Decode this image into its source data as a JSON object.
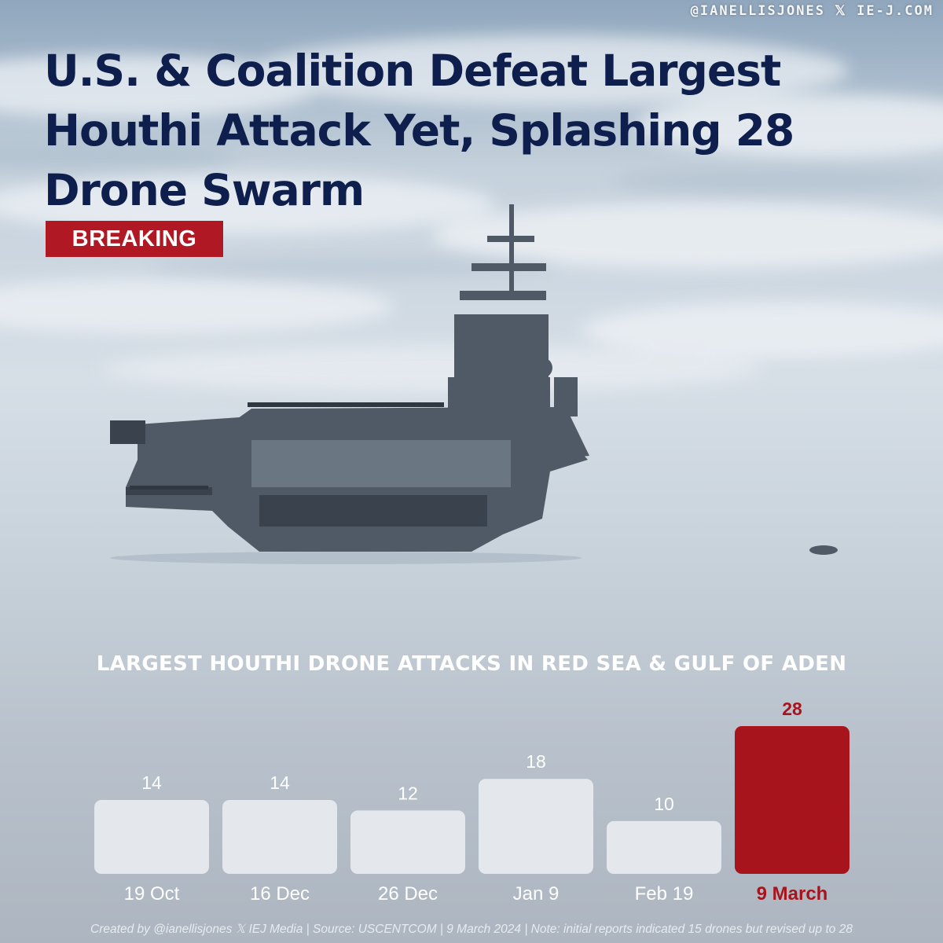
{
  "header": {
    "handle": "@IANELLISJONES 𝕏 IE-J.COM",
    "headline": "U.S. & Coalition Defeat Largest Houthi Attack Yet, Splashing 28 Drone Swarm",
    "badge": "BREAKING"
  },
  "colors": {
    "navy": "#0e1f4d",
    "accent_red": "#a8141c",
    "bar_default": "#e4e7ec",
    "label_default": "#ffffff"
  },
  "chart_data": {
    "type": "bar",
    "title": "LARGEST HOUTHI DRONE ATTACKS IN RED SEA & GULF OF ADEN",
    "categories": [
      "19 Oct",
      "16 Dec",
      "26 Dec",
      "Jan 9",
      "Feb 19",
      "9 March"
    ],
    "values": [
      14,
      14,
      12,
      18,
      10,
      28
    ],
    "highlight_index": 5,
    "ylim": [
      0,
      28
    ],
    "grid": false,
    "xlabel": "",
    "ylabel": ""
  },
  "footer": {
    "text": "Created by @ianellisjones 𝕏 IEJ Media | Source: USCENTCOM | 9 March 2024 | Note: initial reports indicated 15 drones but revised up to 28"
  }
}
